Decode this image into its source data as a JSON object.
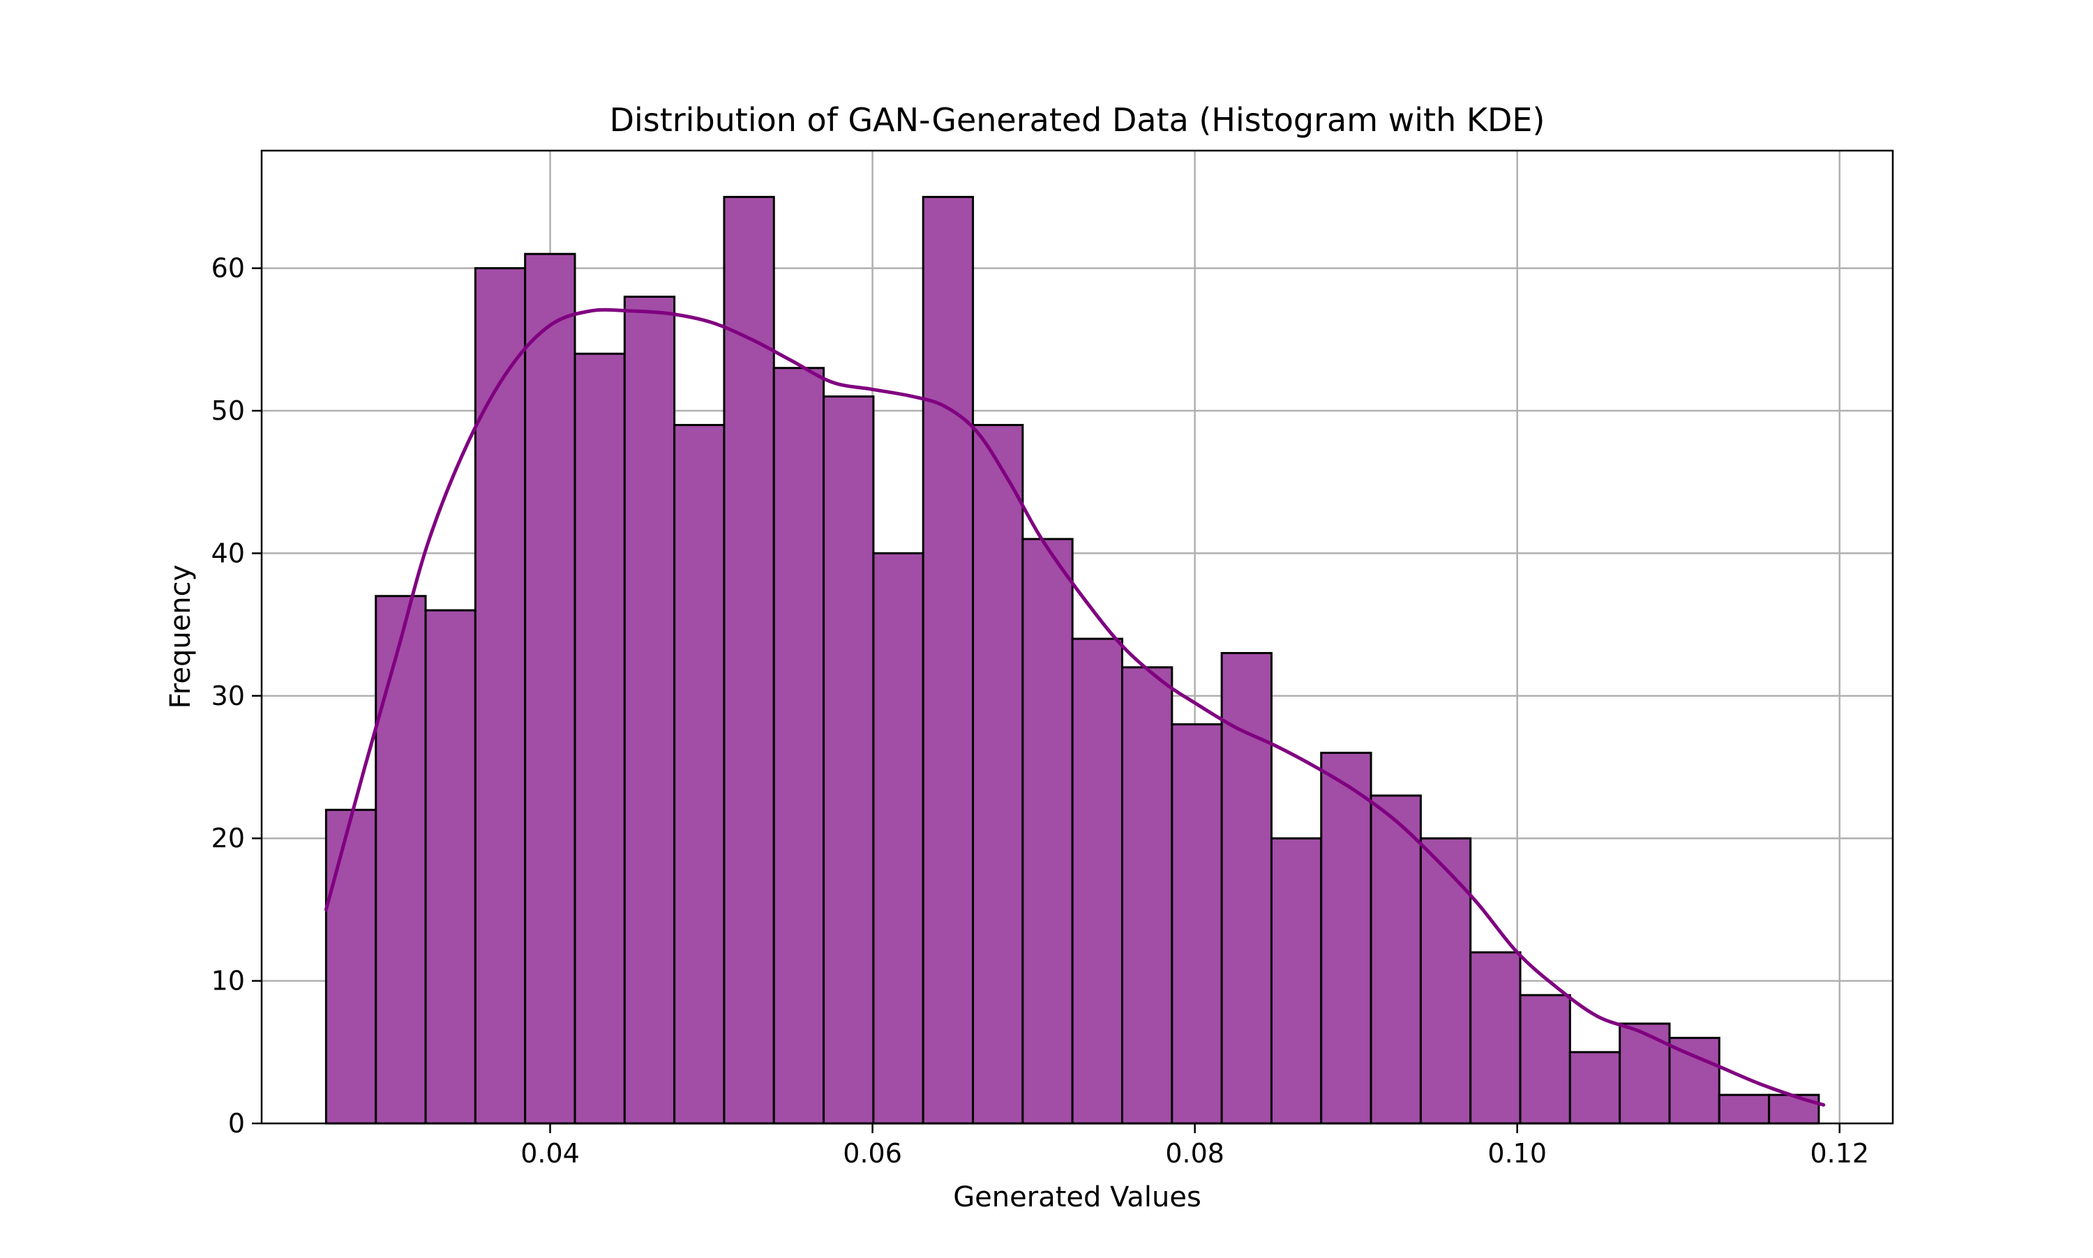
{
  "chart_data": {
    "type": "bar",
    "title": "Distribution of GAN-Generated Data (Histogram with KDE)",
    "xlabel": "Generated Values",
    "ylabel": "Frequency",
    "xlim": [
      0.0221,
      0.1233
    ],
    "ylim": [
      0,
      68.25
    ],
    "grid": true,
    "bar_color": "#a24da6",
    "bar_edge_color": "#000000",
    "kde_color": "#800080",
    "grid_color": "#b0b0b0",
    "x_ticks": [
      {
        "value": 0.04,
        "label": "0.04"
      },
      {
        "value": 0.06,
        "label": "0.06"
      },
      {
        "value": 0.08,
        "label": "0.08"
      },
      {
        "value": 0.1,
        "label": "0.10"
      },
      {
        "value": 0.12,
        "label": "0.12"
      }
    ],
    "y_ticks": [
      {
        "value": 0,
        "label": "0"
      },
      {
        "value": 10,
        "label": "10"
      },
      {
        "value": 20,
        "label": "20"
      },
      {
        "value": 30,
        "label": "30"
      },
      {
        "value": 40,
        "label": "40"
      },
      {
        "value": 50,
        "label": "50"
      },
      {
        "value": 60,
        "label": "60"
      }
    ],
    "bins": {
      "start": 0.0261,
      "width": 0.003087,
      "counts": [
        22,
        37,
        36,
        60,
        61,
        54,
        58,
        49,
        65,
        53,
        51,
        40,
        65,
        49,
        41,
        34,
        32,
        28,
        33,
        20,
        26,
        23,
        20,
        12,
        9,
        5,
        7,
        6,
        2,
        2
      ]
    },
    "kde": {
      "x": [
        0.0261,
        0.0285,
        0.0305,
        0.0325,
        0.035,
        0.0375,
        0.04,
        0.0425,
        0.045,
        0.0475,
        0.05,
        0.0525,
        0.055,
        0.0575,
        0.06,
        0.0625,
        0.0645,
        0.0665,
        0.0685,
        0.0705,
        0.073,
        0.0755,
        0.078,
        0.08,
        0.0825,
        0.085,
        0.0875,
        0.09,
        0.0925,
        0.095,
        0.0975,
        0.1,
        0.1025,
        0.105,
        0.1075,
        0.11,
        0.1125,
        0.115,
        0.1175,
        0.119
      ],
      "y": [
        15,
        25,
        33,
        41,
        48,
        53,
        56,
        57,
        57,
        56.8,
        56.2,
        55,
        53.5,
        52,
        51.5,
        51,
        50.3,
        48.5,
        45,
        41,
        37,
        33.5,
        31,
        29.5,
        27.8,
        26.5,
        25,
        23.3,
        21.2,
        18.5,
        15.5,
        12,
        9.5,
        7.5,
        6.5,
        5.2,
        4,
        2.8,
        1.8,
        1.3
      ]
    }
  }
}
